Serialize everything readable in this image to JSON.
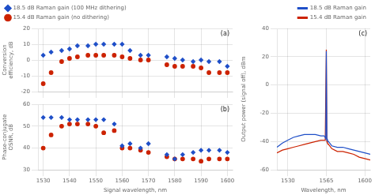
{
  "chart_data": [
    {
      "type": "scatter",
      "ylabel": "Conversion\nefficiency, dB",
      "annotations": [
        "(a)"
      ],
      "x": [
        1530,
        1533,
        1537,
        1540,
        1543,
        1547,
        1550,
        1553,
        1557,
        1560,
        1563,
        1567,
        1570,
        1577,
        1580,
        1583,
        1587,
        1590,
        1593,
        1597,
        1600
      ],
      "series": [
        {
          "name": "18.5 dB Raman gain (100 MHz dithering)",
          "color": "#1f4fc8",
          "marker": "diamond",
          "values": [
            3,
            5,
            6,
            7,
            9,
            9,
            10,
            10,
            10,
            10,
            6,
            3,
            3,
            2,
            1,
            0,
            -1,
            0,
            -1,
            -1,
            -4
          ]
        },
        {
          "name": "15.4 dB Raman gain (no dithering)",
          "color": "#cc2200",
          "marker": "circle",
          "values": [
            -15,
            -8,
            -1,
            1,
            2,
            3,
            3,
            3,
            3,
            2,
            1,
            0,
            0,
            -3,
            -4,
            -4,
            -4,
            -5,
            -8,
            -8,
            -8
          ]
        }
      ],
      "xlim": [
        1528,
        1602
      ],
      "xticks": [
        1530,
        1540,
        1550,
        1560,
        1570,
        1580,
        1590,
        1600
      ],
      "ylim": [
        -20,
        20
      ],
      "yticks": [
        -20,
        -10,
        0,
        10,
        20
      ],
      "grid": true,
      "legend": "upper left",
      "tick_labels": "y"
    },
    {
      "type": "scatter",
      "xlabel": "Signal wavelength, nm",
      "ylabel": "Phase-conjugate\nOSNR, dB",
      "annotations": [
        "(b)"
      ],
      "x": [
        1530,
        1533,
        1537,
        1540,
        1543,
        1547,
        1550,
        1553,
        1557,
        1560,
        1563,
        1567,
        1570,
        1577,
        1580,
        1583,
        1587,
        1590,
        1593,
        1597,
        1600
      ],
      "series": [
        {
          "name": "18.5 dB Raman gain (100 MHz dithering)",
          "color": "#1f4fc8",
          "marker": "diamond",
          "values": [
            54,
            54,
            54,
            53,
            53,
            53,
            53,
            53,
            51,
            41,
            42,
            40,
            42,
            37,
            35,
            37,
            38,
            39,
            39,
            39,
            38
          ]
        },
        {
          "name": "15.4 dB Raman gain (no dithering)",
          "color": "#cc2200",
          "marker": "circle",
          "values": [
            40,
            46,
            50,
            51,
            51,
            51,
            50,
            47,
            48,
            40,
            40,
            39,
            38,
            36,
            35,
            35,
            35,
            34,
            35,
            35,
            35
          ]
        }
      ],
      "xlim": [
        1528,
        1602
      ],
      "xticks": [
        1530,
        1540,
        1550,
        1560,
        1570,
        1580,
        1590,
        1600
      ],
      "ylim": [
        30,
        60
      ],
      "yticks": [
        30,
        40,
        50,
        60
      ],
      "grid": true
    },
    {
      "type": "line",
      "xlabel": "Wavelength, nm",
      "ylabel": "Output power (signal off), dBm",
      "annotations": [
        "(c)"
      ],
      "x": [
        1520,
        1525,
        1530,
        1535,
        1540,
        1545,
        1550,
        1555,
        1560,
        1562,
        1563,
        1564,
        1564.5,
        1565,
        1565.5,
        1566,
        1567,
        1568,
        1570,
        1575,
        1580,
        1585,
        1590,
        1595,
        1600,
        1605
      ],
      "series": [
        {
          "name": "18.5 dB Raman gain",
          "color": "#1f4fc8",
          "values": [
            -44,
            -41,
            -39,
            -37,
            -36,
            -35,
            -35,
            -35,
            -36,
            -36,
            -36,
            -37,
            -38,
            24,
            -38,
            -39,
            -40,
            -41,
            -43,
            -44,
            -44,
            -45,
            -46,
            -47,
            -48,
            -49
          ]
        },
        {
          "name": "15.4 dB Raman gain",
          "color": "#cc2200",
          "values": [
            -48,
            -46,
            -45,
            -44,
            -43,
            -42,
            -41,
            -40,
            -39,
            -39,
            -39,
            -39,
            -39,
            25,
            -40,
            -41,
            -42,
            -43,
            -45,
            -47,
            -47,
            -48,
            -49,
            -51,
            -52,
            -53
          ]
        }
      ],
      "xlim": [
        1520,
        1605
      ],
      "xticks": [
        1530,
        1565,
        1600
      ],
      "ylim": [
        -60,
        40
      ],
      "yticks": [
        -60,
        -40,
        -20,
        0,
        20,
        40
      ],
      "grid": true,
      "legend": "upper right"
    }
  ]
}
